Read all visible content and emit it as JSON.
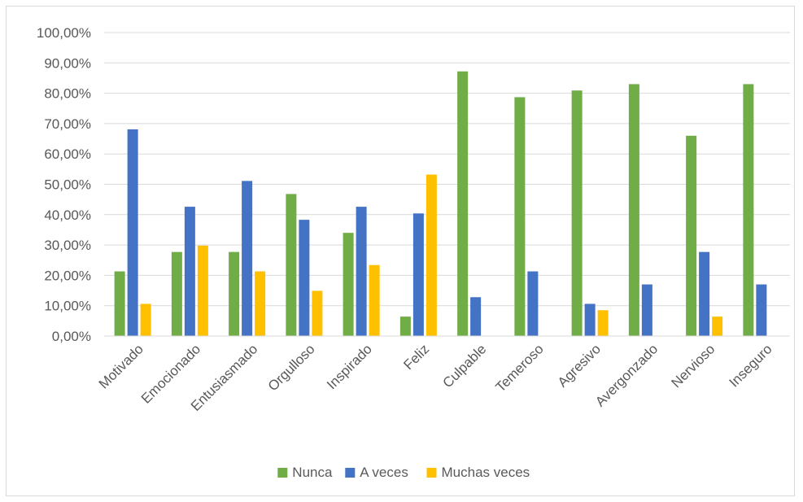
{
  "chart_data": {
    "type": "bar",
    "title": "",
    "xlabel": "",
    "ylabel": "",
    "ylim": [
      0,
      100
    ],
    "y_ticks": [
      "0,00%",
      "10,00%",
      "20,00%",
      "30,00%",
      "40,00%",
      "50,00%",
      "60,00%",
      "70,00%",
      "80,00%",
      "90,00%",
      "100,00%"
    ],
    "grid": true,
    "legend_position": "bottom",
    "categories": [
      "Motivado",
      "Emocionado",
      "Entusiasmado",
      "Orgulloso",
      "Inspirado",
      "Feliz",
      "Culpable",
      "Temeroso",
      "Agresivo",
      "Avergonzado",
      "Nervioso",
      "Inseguro"
    ],
    "series": [
      {
        "name": "Nunca",
        "color": "#70ad47",
        "values": [
          21.3,
          27.7,
          27.7,
          46.8,
          34.0,
          6.4,
          87.2,
          78.7,
          80.9,
          83.0,
          66.0,
          83.0
        ]
      },
      {
        "name": "A veces",
        "color": "#4472c4",
        "values": [
          68.1,
          42.6,
          51.1,
          38.3,
          42.6,
          40.4,
          12.8,
          21.3,
          10.6,
          17.0,
          27.7,
          17.0
        ]
      },
      {
        "name": "Muchas veces",
        "color": "#ffc000",
        "values": [
          10.6,
          29.8,
          21.3,
          14.9,
          23.4,
          53.2,
          0,
          0,
          8.5,
          0,
          6.4,
          0
        ]
      }
    ]
  }
}
